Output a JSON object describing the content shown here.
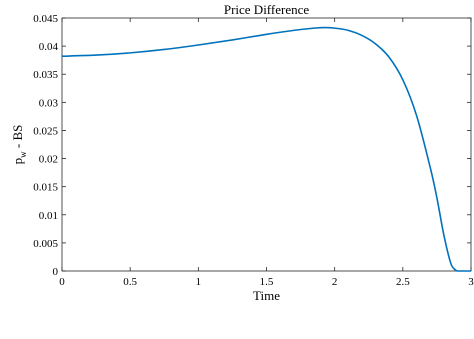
{
  "chart_data": {
    "type": "line",
    "title": "Price Difference",
    "xlabel": "Time",
    "ylabel_main": "p",
    "ylabel_sub": "w",
    "ylabel_rest": " - BS",
    "xlim": [
      0,
      3
    ],
    "ylim": [
      0,
      0.045
    ],
    "xticks": [
      0,
      0.5,
      1,
      1.5,
      2,
      2.5,
      3
    ],
    "xtick_labels": [
      "0",
      "0.5",
      "1",
      "1.5",
      "2",
      "2.5",
      "3"
    ],
    "yticks": [
      0,
      0.005,
      0.01,
      0.015,
      0.02,
      0.025,
      0.03,
      0.035,
      0.04,
      0.045
    ],
    "ytick_labels": [
      "0",
      "0.005",
      "0.01",
      "0.015",
      "0.02",
      "0.025",
      "0.03",
      "0.035",
      "0.04",
      "0.045"
    ],
    "grid": false,
    "line_color": "#0072BD",
    "series": [
      {
        "x": [
          0,
          0.25,
          0.5,
          0.75,
          1.0,
          1.25,
          1.5,
          1.7,
          1.85,
          1.93,
          2.0,
          2.1,
          2.2,
          2.3,
          2.4,
          2.5,
          2.6,
          2.7,
          2.75,
          2.8,
          2.85,
          2.88,
          2.9,
          2.93,
          2.95,
          3.0
        ],
        "y": [
          0.0382,
          0.0384,
          0.0388,
          0.0394,
          0.0402,
          0.0411,
          0.0421,
          0.0428,
          0.0432,
          0.0433,
          0.0432,
          0.0428,
          0.0419,
          0.0404,
          0.038,
          0.034,
          0.0277,
          0.0185,
          0.013,
          0.0065,
          0.0015,
          0.0003,
          0.0,
          0.0,
          0.0,
          0.0
        ]
      }
    ]
  }
}
